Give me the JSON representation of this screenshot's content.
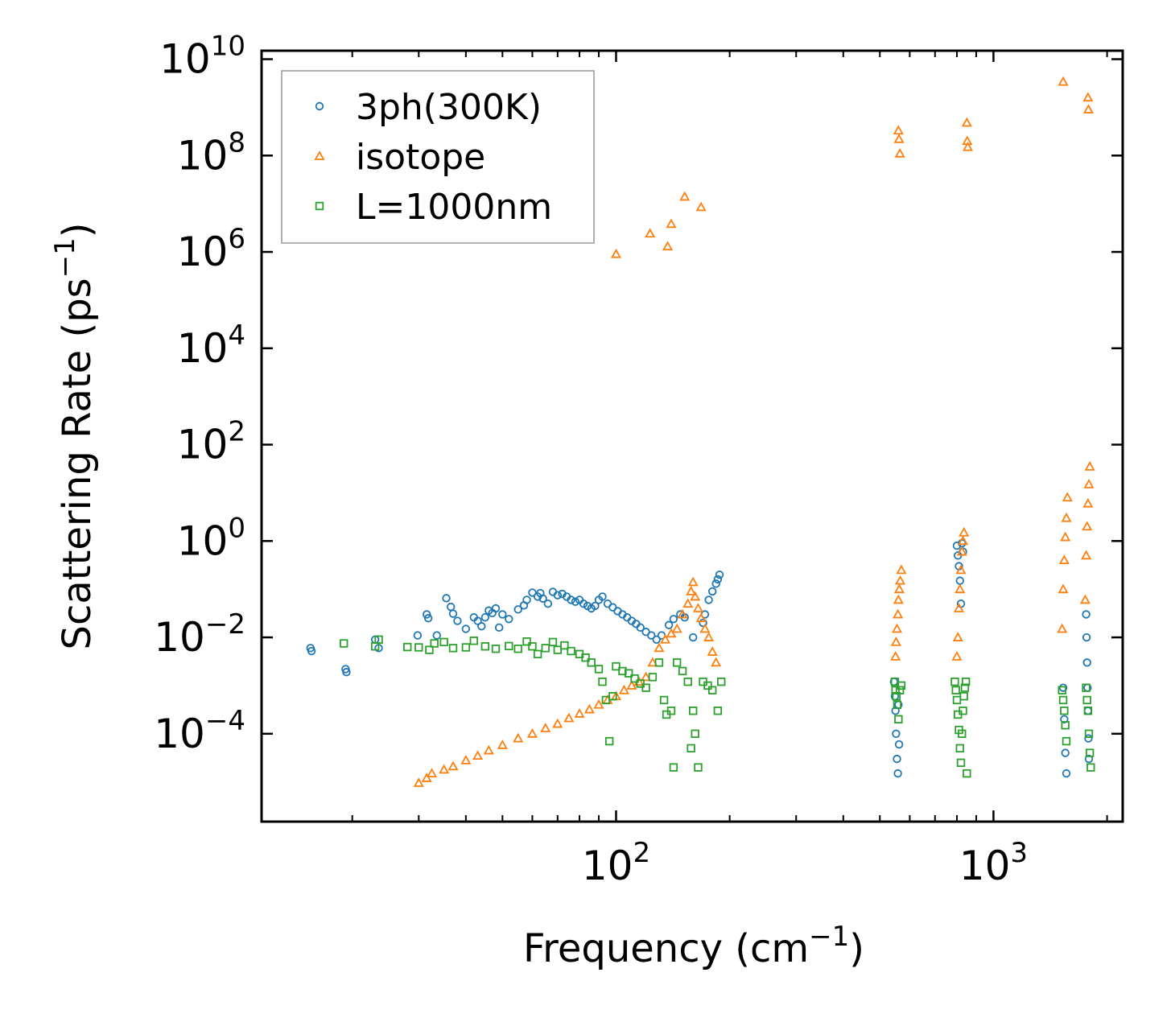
{
  "chart_data": {
    "type": "scatter",
    "scale": {
      "x": "log",
      "y": "log"
    },
    "xlabel": {
      "text": "Frequency (cm",
      "sup": "−1",
      "close": ")"
    },
    "ylabel": {
      "text": "Scattering Rate (ps",
      "sup": "−1",
      "close": ")"
    },
    "xlim": [
      11.5,
      2200
    ],
    "ylim": [
      1.5e-06,
      15000000000
    ],
    "x_ticks": [
      {
        "value": 100,
        "base": "10",
        "exp": "2"
      },
      {
        "value": 1000,
        "base": "10",
        "exp": "3"
      }
    ],
    "y_ticks": [
      {
        "value": 0.0001,
        "base": "10",
        "exp": "−4"
      },
      {
        "value": 0.01,
        "base": "10",
        "exp": "−2"
      },
      {
        "value": 1,
        "base": "10",
        "exp": "0"
      },
      {
        "value": 100,
        "base": "10",
        "exp": "2"
      },
      {
        "value": 10000,
        "base": "10",
        "exp": "4"
      },
      {
        "value": 1000000,
        "base": "10",
        "exp": "6"
      },
      {
        "value": 100000000,
        "base": "10",
        "exp": "8"
      },
      {
        "value": 10000000000,
        "base": "10",
        "exp": "10"
      }
    ],
    "legend_position": "top-left",
    "series": [
      {
        "name": "3ph(300K)",
        "marker": "circle",
        "color": "#1f77b4",
        "points": [
          [
            15.5,
            0.006
          ],
          [
            15.6,
            0.0052
          ],
          [
            19.2,
            0.0022
          ],
          [
            19.3,
            0.0019
          ],
          [
            23,
            0.009
          ],
          [
            23.5,
            0.006
          ],
          [
            29.8,
            0.011
          ],
          [
            31.5,
            0.03
          ],
          [
            31.8,
            0.025
          ],
          [
            33.5,
            0.011
          ],
          [
            35.5,
            0.065
          ],
          [
            36.5,
            0.043
          ],
          [
            37,
            0.031
          ],
          [
            38,
            0.022
          ],
          [
            40,
            0.015
          ],
          [
            42,
            0.026
          ],
          [
            43,
            0.022
          ],
          [
            44,
            0.017
          ],
          [
            45,
            0.026
          ],
          [
            46,
            0.036
          ],
          [
            47,
            0.032
          ],
          [
            48,
            0.04
          ],
          [
            49,
            0.016
          ],
          [
            50,
            0.03
          ],
          [
            52,
            0.024
          ],
          [
            55,
            0.038
          ],
          [
            57,
            0.046
          ],
          [
            58,
            0.06
          ],
          [
            60,
            0.085
          ],
          [
            62,
            0.07
          ],
          [
            63,
            0.083
          ],
          [
            64,
            0.064
          ],
          [
            66,
            0.05
          ],
          [
            68,
            0.088
          ],
          [
            70,
            0.075
          ],
          [
            72,
            0.08
          ],
          [
            74,
            0.07
          ],
          [
            76,
            0.06
          ],
          [
            78,
            0.055
          ],
          [
            80,
            0.06
          ],
          [
            82,
            0.05
          ],
          [
            84,
            0.045
          ],
          [
            86,
            0.04
          ],
          [
            88,
            0.045
          ],
          [
            90,
            0.06
          ],
          [
            92,
            0.07
          ],
          [
            95,
            0.05
          ],
          [
            98,
            0.042
          ],
          [
            101,
            0.035
          ],
          [
            104,
            0.03
          ],
          [
            107,
            0.026
          ],
          [
            110,
            0.022
          ],
          [
            113,
            0.019
          ],
          [
            116,
            0.016
          ],
          [
            120,
            0.013
          ],
          [
            124,
            0.011
          ],
          [
            128,
            0.009
          ],
          [
            132,
            0.011
          ],
          [
            138,
            0.018
          ],
          [
            142,
            0.024
          ],
          [
            148,
            0.03
          ],
          [
            152,
            0.026
          ],
          [
            160,
            0.01
          ],
          [
            170,
            0.02
          ],
          [
            172,
            0.03
          ],
          [
            176,
            0.06
          ],
          [
            180,
            0.09
          ],
          [
            184,
            0.13
          ],
          [
            186,
            0.16
          ],
          [
            188,
            0.2
          ],
          [
            545,
            0.0012
          ],
          [
            548,
            0.0006
          ],
          [
            550,
            0.0003
          ],
          [
            552,
            0.0001
          ],
          [
            555,
            3e-05
          ],
          [
            558,
            1.5e-05
          ],
          [
            560,
            0.0004
          ],
          [
            562,
            6e-05
          ],
          [
            800,
            0.8
          ],
          [
            805,
            0.5
          ],
          [
            810,
            0.3
          ],
          [
            815,
            0.15
          ],
          [
            820,
            0.05
          ],
          [
            825,
            0.9
          ],
          [
            830,
            0.6
          ],
          [
            1530,
            0.0009
          ],
          [
            1540,
            0.0002
          ],
          [
            1550,
            4e-05
          ],
          [
            1560,
            1.5e-05
          ],
          [
            1760,
            0.03
          ],
          [
            1765,
            0.01
          ],
          [
            1770,
            0.003
          ],
          [
            1775,
            0.0009
          ],
          [
            1780,
            0.0003
          ],
          [
            1785,
            8e-05
          ],
          [
            1790,
            3e-05
          ]
        ]
      },
      {
        "name": "isotope",
        "marker": "triangle",
        "color": "#ff7f0e",
        "points": [
          [
            30,
            9.5e-06
          ],
          [
            31.5,
            1.2e-05
          ],
          [
            32.5,
            1.5e-05
          ],
          [
            35,
            1.8e-05
          ],
          [
            37,
            2.1e-05
          ],
          [
            40,
            2.8e-05
          ],
          [
            43,
            3.5e-05
          ],
          [
            46,
            4.5e-05
          ],
          [
            50,
            5.8e-05
          ],
          [
            55,
            8e-05
          ],
          [
            60,
            0.0001
          ],
          [
            65,
            0.00013
          ],
          [
            70,
            0.00016
          ],
          [
            75,
            0.00021
          ],
          [
            80,
            0.00026
          ],
          [
            85,
            0.00032
          ],
          [
            90,
            0.0004
          ],
          [
            95,
            0.0005
          ],
          [
            100,
            0.0006
          ],
          [
            105,
            0.0008
          ],
          [
            110,
            0.001
          ],
          [
            115,
            0.0012
          ],
          [
            120,
            0.0015
          ],
          [
            125,
            0.003
          ],
          [
            130,
            0.006
          ],
          [
            135,
            0.009
          ],
          [
            140,
            0.012
          ],
          [
            145,
            0.015
          ],
          [
            150,
            0.03
          ],
          [
            155,
            0.05
          ],
          [
            158,
            0.09
          ],
          [
            160,
            0.14
          ],
          [
            162,
            0.07
          ],
          [
            165,
            0.04
          ],
          [
            168,
            0.025
          ],
          [
            172,
            0.015
          ],
          [
            176,
            0.01
          ],
          [
            180,
            0.005
          ],
          [
            184,
            0.003
          ],
          [
            100,
            900000
          ],
          [
            123,
            2400000
          ],
          [
            137,
            1300000
          ],
          [
            140,
            3800000
          ],
          [
            152,
            14000000
          ],
          [
            168,
            8500000
          ],
          [
            550,
            0.004
          ],
          [
            552,
            0.008
          ],
          [
            555,
            0.015
          ],
          [
            558,
            0.03
          ],
          [
            560,
            0.06
          ],
          [
            563,
            0.1
          ],
          [
            566,
            0.15
          ],
          [
            570,
            0.25
          ],
          [
            560,
            330000000
          ],
          [
            562,
            220000000
          ],
          [
            565,
            110000000
          ],
          [
            800,
            0.004
          ],
          [
            805,
            0.01
          ],
          [
            810,
            0.04
          ],
          [
            815,
            0.1
          ],
          [
            820,
            0.25
          ],
          [
            825,
            0.6
          ],
          [
            830,
            1.0
          ],
          [
            835,
            1.5
          ],
          [
            850,
            480000000
          ],
          [
            852,
            200000000
          ],
          [
            855,
            150000000
          ],
          [
            1520,
            0.015
          ],
          [
            1530,
            0.1
          ],
          [
            1540,
            0.4
          ],
          [
            1550,
            1.2
          ],
          [
            1560,
            3
          ],
          [
            1570,
            8
          ],
          [
            1530,
            3400000000
          ],
          [
            1750,
            0.06
          ],
          [
            1760,
            0.5
          ],
          [
            1770,
            2
          ],
          [
            1780,
            6
          ],
          [
            1790,
            15
          ],
          [
            1800,
            35
          ],
          [
            1780,
            1600000000
          ],
          [
            1785,
            900000000
          ]
        ]
      },
      {
        "name": "L=1000nm",
        "marker": "square",
        "color": "#2ca02c",
        "points": [
          [
            19,
            0.0075
          ],
          [
            23,
            0.0065
          ],
          [
            23.5,
            0.009
          ],
          [
            28,
            0.0063
          ],
          [
            30,
            0.0062
          ],
          [
            32,
            0.0055
          ],
          [
            33,
            0.0075
          ],
          [
            35,
            0.008
          ],
          [
            37,
            0.006
          ],
          [
            40,
            0.0062
          ],
          [
            42,
            0.0085
          ],
          [
            45,
            0.0065
          ],
          [
            48,
            0.0058
          ],
          [
            52,
            0.0066
          ],
          [
            55,
            0.0058
          ],
          [
            58,
            0.0082
          ],
          [
            60,
            0.0065
          ],
          [
            62,
            0.0045
          ],
          [
            65,
            0.006
          ],
          [
            68,
            0.008
          ],
          [
            70,
            0.0055
          ],
          [
            73,
            0.0068
          ],
          [
            76,
            0.0052
          ],
          [
            80,
            0.0045
          ],
          [
            83,
            0.0038
          ],
          [
            86,
            0.003
          ],
          [
            90,
            0.0022
          ],
          [
            92,
            0.0012
          ],
          [
            94,
            0.0005
          ],
          [
            96,
            7e-05
          ],
          [
            98,
            0.0006
          ],
          [
            100,
            0.0025
          ],
          [
            104,
            0.002
          ],
          [
            108,
            0.0018
          ],
          [
            112,
            0.0014
          ],
          [
            116,
            0.0011
          ],
          [
            120,
            0.0009
          ],
          [
            125,
            0.0015
          ],
          [
            130,
            0.003
          ],
          [
            134,
            0.0005
          ],
          [
            136,
            0.00025
          ],
          [
            140,
            0.0003
          ],
          [
            142,
            2e-05
          ],
          [
            145,
            0.003
          ],
          [
            150,
            0.002
          ],
          [
            155,
            0.0012
          ],
          [
            158,
            5e-05
          ],
          [
            160,
            0.0003
          ],
          [
            162,
            0.0001
          ],
          [
            165,
            2e-05
          ],
          [
            170,
            0.0012
          ],
          [
            175,
            0.001
          ],
          [
            180,
            0.0008
          ],
          [
            186,
            0.0003
          ],
          [
            190,
            0.0012
          ],
          [
            548,
            0.0012
          ],
          [
            550,
            0.0008
          ],
          [
            553,
            0.0006
          ],
          [
            556,
            0.0004
          ],
          [
            560,
            0.0002
          ],
          [
            565,
            0.0008
          ],
          [
            570,
            0.001
          ],
          [
            790,
            0.0012
          ],
          [
            795,
            0.0008
          ],
          [
            800,
            0.0005
          ],
          [
            805,
            0.00025
          ],
          [
            810,
            0.00012
          ],
          [
            815,
            5e-05
          ],
          [
            820,
            2.5e-05
          ],
          [
            825,
            0.0001
          ],
          [
            830,
            0.0003
          ],
          [
            835,
            0.0006
          ],
          [
            840,
            0.0009
          ],
          [
            845,
            0.0012
          ],
          [
            850,
            1.5e-05
          ],
          [
            1520,
            0.0008
          ],
          [
            1530,
            0.0005
          ],
          [
            1540,
            0.0003
          ],
          [
            1550,
            0.00015
          ],
          [
            1560,
            7e-05
          ],
          [
            1760,
            0.0009
          ],
          [
            1770,
            0.0005
          ],
          [
            1780,
            0.0003
          ],
          [
            1790,
            0.0001
          ],
          [
            1800,
            4e-05
          ],
          [
            1810,
            2e-05
          ]
        ]
      }
    ]
  }
}
